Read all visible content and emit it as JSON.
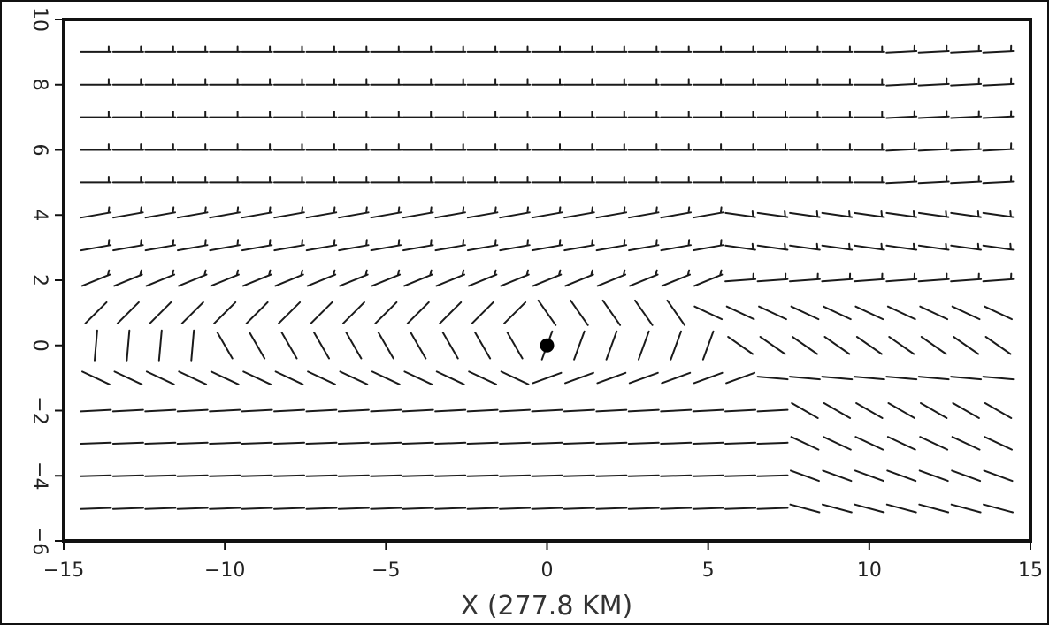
{
  "chart_data": {
    "type": "vector-field",
    "xlabel": "X (277.8 KM)",
    "ylabel": "",
    "xlim": [
      -15,
      15
    ],
    "ylim": [
      -6,
      10
    ],
    "xticks": [
      "-15",
      "-10",
      "-5",
      "0",
      "5",
      "10",
      "15"
    ],
    "yticks": [
      "-6",
      "-4",
      "-2",
      "0",
      "2",
      "4",
      "6",
      "8",
      "10"
    ],
    "grid": false,
    "center_marker": {
      "x": 0,
      "y": 0
    },
    "barb_grid": {
      "x_start": -14,
      "x_end": 14,
      "x_step": 1,
      "y_values": [
        9,
        8,
        7,
        6,
        5,
        4,
        3,
        2,
        1,
        0,
        -1,
        -2,
        -3,
        -4,
        -5
      ]
    }
  }
}
